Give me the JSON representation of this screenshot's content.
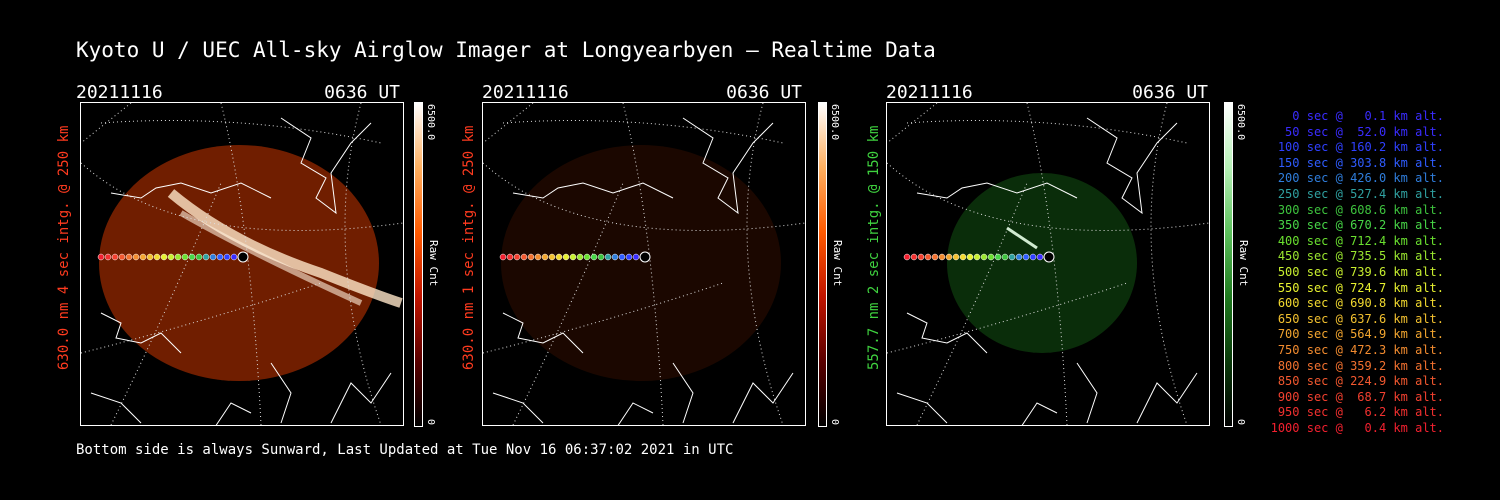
{
  "title": "Kyoto U / UEC All-sky Airglow Imager at Longyearbyen — Realtime Data",
  "footer": "Bottom side is always Sunward, Last Updated at Tue Nov 16 06:37:02 2021 in UTC",
  "panels": [
    {
      "date": "20211116",
      "time": "0636 UT",
      "side_label": "630.0 nm 4 sec intg. @ 250 km",
      "side_label_color": "#ff3b1f",
      "colorbar_max": "6500.0",
      "colorbar_min": "0",
      "colorbar_unit": "Raw Cnt",
      "colormap": "red",
      "brightness_level": 0.75
    },
    {
      "date": "20211116",
      "time": "0636 UT",
      "side_label": "630.0 nm 1 sec intg. @ 250 km",
      "side_label_color": "#ff3b1f",
      "colorbar_max": "6500.0",
      "colorbar_min": "0",
      "colorbar_unit": "Raw Cnt",
      "colormap": "red",
      "brightness_level": 0.18
    },
    {
      "date": "20211116",
      "time": "0636 UT",
      "side_label": "557.7 nm 2 sec intg. @ 150 km",
      "side_label_color": "#3fd23f",
      "colorbar_max": "6500.0",
      "colorbar_min": "0",
      "colorbar_unit": "Raw Cnt",
      "colormap": "green",
      "brightness_level": 0.3
    }
  ],
  "legend": [
    {
      "text": " 0 sec @   0.1 km alt.",
      "color": "#3a2cff"
    },
    {
      "text": " 50 sec @  52.0 km alt.",
      "color": "#3a2cff"
    },
    {
      "text": "100 sec @ 160.2 km alt.",
      "color": "#2f40ff"
    },
    {
      "text": "150 sec @ 303.8 km alt.",
      "color": "#2f5cff"
    },
    {
      "text": "200 sec @ 426.0 km alt.",
      "color": "#2f7ddb"
    },
    {
      "text": "250 sec @ 527.4 km alt.",
      "color": "#2fa0a0"
    },
    {
      "text": "300 sec @ 608.6 km alt.",
      "color": "#3dc23d"
    },
    {
      "text": "350 sec @ 670.2 km alt.",
      "color": "#47d647"
    },
    {
      "text": "400 sec @ 712.4 km alt.",
      "color": "#6ae02f"
    },
    {
      "text": "450 sec @ 735.5 km alt.",
      "color": "#9ae62f"
    },
    {
      "text": "500 sec @ 739.6 km alt.",
      "color": "#c8ef2f"
    },
    {
      "text": "550 sec @ 724.7 km alt.",
      "color": "#e6f02f"
    },
    {
      "text": "600 sec @ 690.8 km alt.",
      "color": "#f2d92f"
    },
    {
      "text": "650 sec @ 637.6 km alt.",
      "color": "#f2c02f"
    },
    {
      "text": "700 sec @ 564.9 km alt.",
      "color": "#f2a52f"
    },
    {
      "text": "750 sec @ 472.3 km alt.",
      "color": "#f28b2f"
    },
    {
      "text": "800 sec @ 359.2 km alt.",
      "color": "#f2712f"
    },
    {
      "text": "850 sec @ 224.9 km alt.",
      "color": "#f2582f"
    },
    {
      "text": "900 sec @  68.7 km alt.",
      "color": "#f2402f"
    },
    {
      "text": "950 sec @   6.2 km alt.",
      "color": "#f2302f"
    },
    {
      "text": "1000 sec @   0.4 km alt.",
      "color": "#f2202f"
    }
  ]
}
